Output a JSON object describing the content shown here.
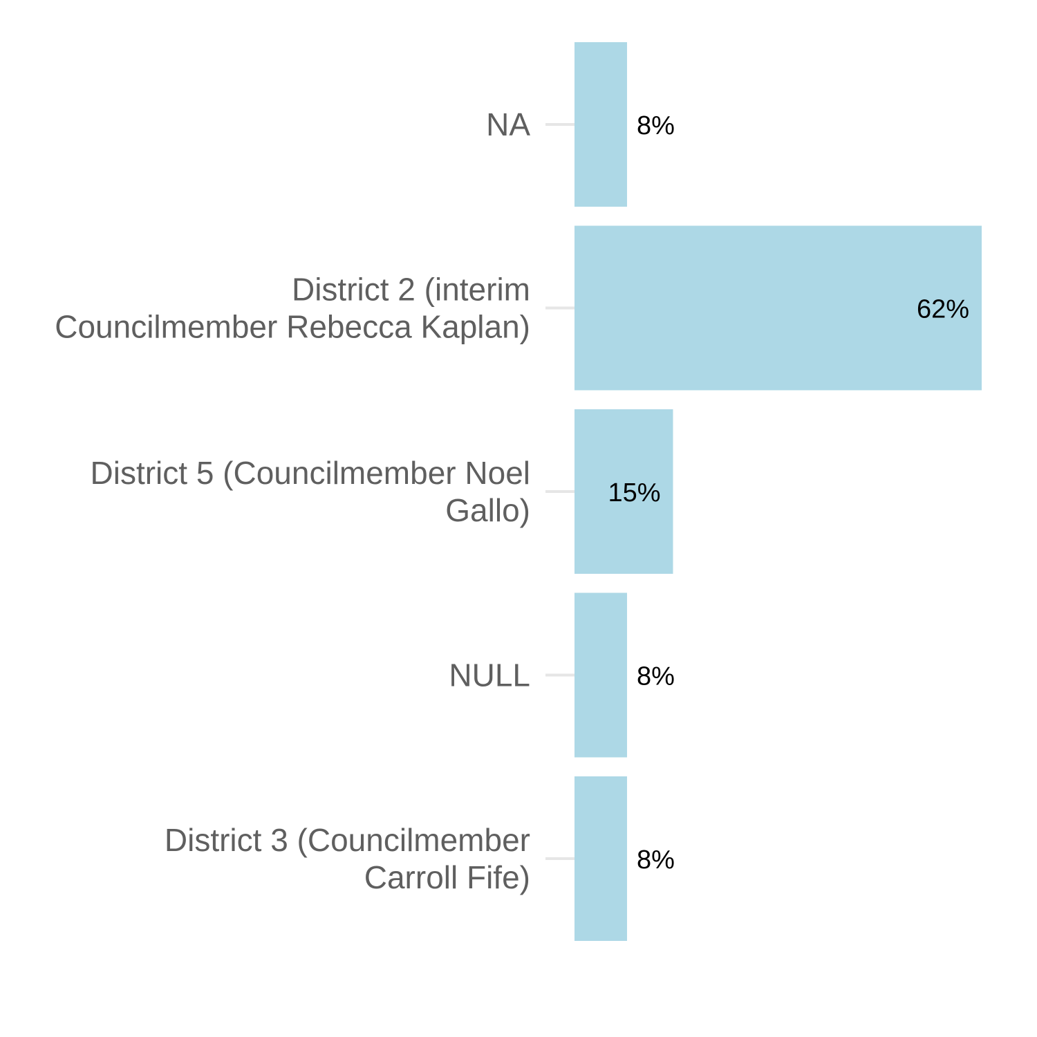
{
  "chart_data": {
    "type": "bar",
    "orientation": "horizontal",
    "title": "",
    "xlabel": "",
    "ylabel": "",
    "categories": [
      "NA",
      "District 2 (interim\nCouncilmember Rebecca Kaplan)",
      "District 5 (Councilmember Noel\nGallo)",
      "NULL",
      "District 3 (Councilmember\nCarroll Fife)"
    ],
    "values": [
      8,
      62,
      15,
      8,
      8
    ],
    "value_labels": [
      "8%",
      "62%",
      "15%",
      "8%",
      "8%"
    ],
    "label_inside_bar": [
      false,
      true,
      true,
      false,
      false
    ],
    "xlim": [
      0,
      62
    ],
    "grid": false,
    "legend": "none",
    "colors": {
      "bar": "#add8e6",
      "category_text": "#5f5f5f",
      "value_text": "#000000",
      "tick": "#e6e6e6"
    }
  }
}
